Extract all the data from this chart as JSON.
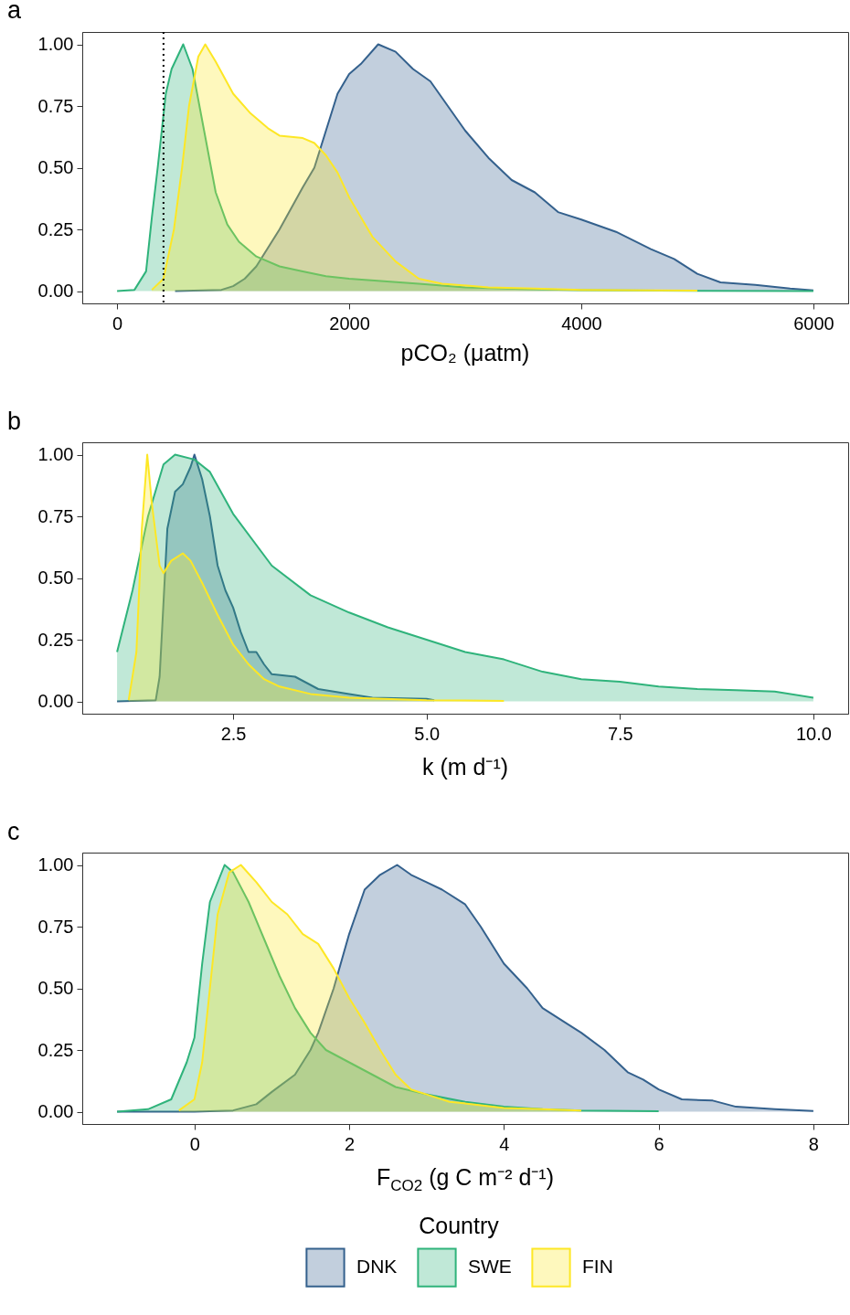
{
  "chart_data": [
    {
      "type": "area",
      "title": "a",
      "xlabel": "pCO₂ (μatm)",
      "xlim": [
        -300,
        6300
      ],
      "xticks": [
        0,
        2000,
        4000,
        6000
      ],
      "ylim": [
        -0.05,
        1.05
      ],
      "yticks": [
        {
          "value": 0,
          "label": "0.00"
        },
        {
          "value": 0.25,
          "label": "0.25"
        },
        {
          "value": 0.5,
          "label": "0.50"
        },
        {
          "value": 0.75,
          "label": "0.75"
        },
        {
          "value": 1,
          "label": "1.00"
        }
      ],
      "ref_lines": [
        {
          "axis": "x",
          "value": 400,
          "line_style": "dotted",
          "color": "#000000"
        }
      ],
      "series": [
        {
          "color": "#34618d",
          "x": [
            500,
            900,
            1000,
            1100,
            1200,
            1400,
            1600,
            1700,
            1800,
            1900,
            2000,
            2100,
            2250,
            2400,
            2550,
            2700,
            2850,
            3000,
            3200,
            3400,
            3600,
            3800,
            4000,
            4300,
            4600,
            4800,
            5000,
            5200,
            5500,
            5800,
            6000
          ],
          "values": [
            0,
            0.005,
            0.02,
            0.05,
            0.1,
            0.25,
            0.42,
            0.5,
            0.65,
            0.8,
            0.88,
            0.92,
            1.0,
            0.97,
            0.9,
            0.85,
            0.75,
            0.65,
            0.54,
            0.45,
            0.4,
            0.32,
            0.29,
            0.24,
            0.17,
            0.13,
            0.07,
            0.035,
            0.025,
            0.01,
            0.003
          ]
        },
        {
          "color": "#2fb37b",
          "x": [
            0,
            150,
            250,
            300,
            350,
            420,
            470,
            570,
            650,
            750,
            850,
            950,
            1050,
            1200,
            1400,
            1600,
            1800,
            2000,
            2300,
            2600,
            3000,
            3500,
            4000,
            5000,
            6000
          ],
          "values": [
            0,
            0.005,
            0.08,
            0.3,
            0.5,
            0.8,
            0.9,
            1.0,
            0.9,
            0.65,
            0.4,
            0.27,
            0.2,
            0.14,
            0.1,
            0.08,
            0.06,
            0.05,
            0.04,
            0.03,
            0.015,
            0.008,
            0.004,
            0.001,
            0
          ]
        },
        {
          "color": "#fde725",
          "x": [
            300,
            400,
            490,
            560,
            620,
            700,
            760,
            850,
            1000,
            1150,
            1300,
            1400,
            1600,
            1700,
            1800,
            1900,
            2000,
            2100,
            2200,
            2400,
            2600,
            2800,
            3200,
            3600,
            4000,
            5000
          ],
          "values": [
            0.005,
            0.05,
            0.25,
            0.5,
            0.75,
            0.95,
            1.0,
            0.93,
            0.8,
            0.72,
            0.66,
            0.63,
            0.62,
            0.6,
            0.55,
            0.48,
            0.38,
            0.3,
            0.22,
            0.12,
            0.05,
            0.03,
            0.015,
            0.01,
            0.005,
            0.002
          ]
        }
      ]
    },
    {
      "type": "area",
      "title": "b",
      "xlabel": "k (m d⁻¹)",
      "xlim": [
        0.55,
        10.45
      ],
      "xticks": [
        2.5,
        {
          "value": 5,
          "label": "5.0"
        },
        7.5,
        {
          "value": 10,
          "label": "10.0"
        }
      ],
      "ylim": [
        -0.05,
        1.05
      ],
      "yticks": [
        {
          "value": 0,
          "label": "0.00"
        },
        {
          "value": 0.25,
          "label": "0.25"
        },
        {
          "value": 0.5,
          "label": "0.50"
        },
        {
          "value": 0.75,
          "label": "0.75"
        },
        {
          "value": 1,
          "label": "1.00"
        }
      ],
      "series": [
        {
          "color": "#34618d",
          "x": [
            1.0,
            1.5,
            1.55,
            1.6,
            1.65,
            1.75,
            1.85,
            1.95,
            2.0,
            2.1,
            2.2,
            2.3,
            2.4,
            2.5,
            2.6,
            2.7,
            2.8,
            2.9,
            3.0,
            3.3,
            3.6,
            4.0,
            4.3,
            5.0,
            5.1
          ],
          "values": [
            0,
            0.005,
            0.1,
            0.4,
            0.7,
            0.85,
            0.88,
            0.95,
            1.0,
            0.9,
            0.75,
            0.55,
            0.45,
            0.38,
            0.28,
            0.2,
            0.2,
            0.15,
            0.11,
            0.1,
            0.05,
            0.03,
            0.015,
            0.01,
            0.005
          ]
        },
        {
          "color": "#2fb37b",
          "x": [
            1.0,
            1.2,
            1.4,
            1.6,
            1.75,
            2.0,
            2.2,
            2.5,
            3.0,
            3.5,
            4.0,
            4.5,
            5.0,
            5.5,
            6.0,
            6.5,
            7.0,
            7.5,
            8.0,
            8.5,
            9.0,
            9.5,
            10
          ],
          "values": [
            0.2,
            0.45,
            0.75,
            0.96,
            1.0,
            0.98,
            0.93,
            0.76,
            0.55,
            0.43,
            0.36,
            0.3,
            0.25,
            0.2,
            0.17,
            0.12,
            0.09,
            0.08,
            0.06,
            0.05,
            0.045,
            0.04,
            0.015
          ]
        },
        {
          "color": "#fde725",
          "x": [
            1.15,
            1.25,
            1.32,
            1.39,
            1.45,
            1.55,
            1.6,
            1.7,
            1.85,
            1.95,
            2.1,
            2.3,
            2.5,
            2.7,
            2.9,
            3.1,
            3.5,
            4.0,
            5.0,
            6.0
          ],
          "values": [
            0.005,
            0.2,
            0.7,
            1.0,
            0.8,
            0.55,
            0.52,
            0.57,
            0.6,
            0.57,
            0.48,
            0.35,
            0.23,
            0.15,
            0.09,
            0.06,
            0.03,
            0.015,
            0.005,
            0.002
          ]
        }
      ]
    },
    {
      "type": "area",
      "title": "c",
      "xlabel": "F$_{CO2}$ (g C m⁻² d⁻¹)",
      "legend_title": "Country",
      "legend": "bottom",
      "xlim": [
        -1.45,
        8.45
      ],
      "xticks": [
        0,
        2,
        4,
        6,
        8
      ],
      "ylim": [
        -0.05,
        1.05
      ],
      "yticks": [
        {
          "value": 0,
          "label": "0.00"
        },
        {
          "value": 0.25,
          "label": "0.25"
        },
        {
          "value": 0.5,
          "label": "0.50"
        },
        {
          "value": 0.75,
          "label": "0.75"
        },
        {
          "value": 1,
          "label": "1.00"
        }
      ],
      "series": [
        {
          "name": "DNK",
          "color": "#34618d",
          "x": [
            -1,
            0,
            0.5,
            0.8,
            1.0,
            1.3,
            1.5,
            1.6,
            1.8,
            2.0,
            2.2,
            2.4,
            2.62,
            2.8,
            3.0,
            3.2,
            3.5,
            3.7,
            4.0,
            4.3,
            4.5,
            4.8,
            5.0,
            5.3,
            5.6,
            5.8,
            6.0,
            6.3,
            6.7,
            7.0,
            7.5,
            8.0
          ],
          "values": [
            0,
            0,
            0.005,
            0.03,
            0.08,
            0.15,
            0.25,
            0.32,
            0.5,
            0.72,
            0.9,
            0.96,
            1.0,
            0.96,
            0.93,
            0.9,
            0.84,
            0.75,
            0.6,
            0.5,
            0.42,
            0.36,
            0.32,
            0.25,
            0.16,
            0.13,
            0.09,
            0.05,
            0.045,
            0.02,
            0.01,
            0.003
          ]
        },
        {
          "name": "SWE",
          "color": "#2fb37b",
          "x": [
            -1,
            -0.6,
            -0.3,
            -0.1,
            0,
            0.1,
            0.2,
            0.39,
            0.5,
            0.7,
            0.9,
            1.1,
            1.3,
            1.5,
            1.7,
            2.0,
            2.3,
            2.6,
            3.0,
            3.5,
            4.0,
            4.5,
            5,
            6
          ],
          "values": [
            0,
            0.01,
            0.05,
            0.2,
            0.3,
            0.6,
            0.85,
            1.0,
            0.97,
            0.85,
            0.7,
            0.55,
            0.42,
            0.32,
            0.25,
            0.2,
            0.15,
            0.1,
            0.07,
            0.04,
            0.02,
            0.01,
            0.005,
            0.002
          ]
        },
        {
          "name": "FIN",
          "color": "#fde725",
          "x": [
            -0.2,
            0,
            0.1,
            0.2,
            0.3,
            0.45,
            0.6,
            0.8,
            1.0,
            1.2,
            1.4,
            1.6,
            1.8,
            2.0,
            2.2,
            2.4,
            2.6,
            2.8,
            3.0,
            3.3,
            3.6,
            4.0,
            4.5,
            5
          ],
          "values": [
            0.005,
            0.05,
            0.2,
            0.5,
            0.8,
            0.97,
            1.0,
            0.93,
            0.85,
            0.8,
            0.72,
            0.68,
            0.58,
            0.46,
            0.36,
            0.25,
            0.15,
            0.09,
            0.07,
            0.04,
            0.03,
            0.015,
            0.01,
            0.005
          ]
        }
      ]
    }
  ]
}
